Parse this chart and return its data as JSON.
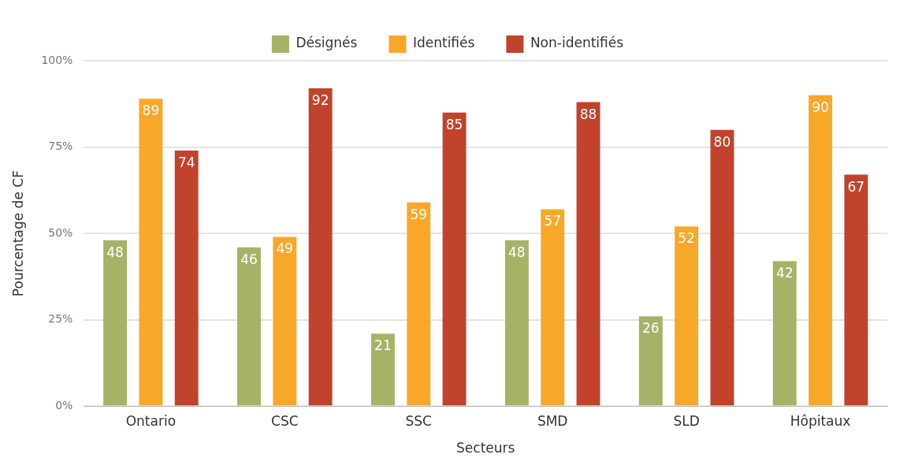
{
  "chart_data": {
    "type": "bar",
    "xlabel": "Secteurs",
    "ylabel": "Pourcentage de CF",
    "categories": [
      "Ontario",
      "CSC",
      "SSC",
      "SMD",
      "SLD",
      "Hôpitaux"
    ],
    "series": [
      {
        "name": "Désignés",
        "color": "#a5b366",
        "values": [
          48,
          46,
          21,
          48,
          26,
          42
        ]
      },
      {
        "name": "Identifiés",
        "color": "#f8a829",
        "values": [
          89,
          49,
          59,
          57,
          52,
          90
        ]
      },
      {
        "name": "Non-identifiés",
        "color": "#c1432b",
        "values": [
          74,
          92,
          85,
          88,
          80,
          67
        ]
      }
    ],
    "ylim": [
      0,
      100
    ],
    "yticks": [
      {
        "value": 0,
        "label": "0%"
      },
      {
        "value": 25,
        "label": "25%"
      },
      {
        "value": 50,
        "label": "50%"
      },
      {
        "value": 75,
        "label": "75%"
      },
      {
        "value": 100,
        "label": "100%"
      }
    ],
    "grid": "y",
    "legend": "top",
    "data_labels": true
  }
}
